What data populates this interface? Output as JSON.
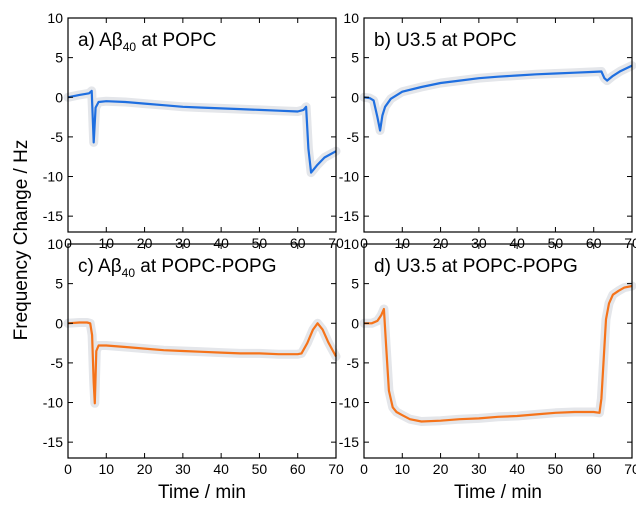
{
  "figure": {
    "ylabel": "Frequency Change / Hz",
    "xlabel": "Time / min"
  },
  "chart_data": [
    {
      "type": "line",
      "title": "a) Aβ",
      "title_sub": "40",
      "title_rest": " at POPC",
      "xlim": [
        0,
        70
      ],
      "ylim": [
        -17,
        10
      ],
      "xticks": [
        0,
        10,
        20,
        30,
        40,
        50,
        60,
        70
      ],
      "yticks": [
        10,
        5,
        0,
        -5,
        -10,
        -15
      ],
      "color": "#1f6fe0",
      "series": [
        {
          "x": [
            0,
            3,
            5.5,
            6.2,
            6.7,
            7.2,
            8,
            10,
            15,
            20,
            25,
            30,
            35,
            40,
            45,
            50,
            55,
            60,
            61.5,
            62.2,
            62.8,
            63.5,
            65,
            67,
            70
          ],
          "y": [
            0,
            0.3,
            0.5,
            0.8,
            -5.7,
            -1.3,
            -0.6,
            -0.5,
            -0.6,
            -0.8,
            -1.0,
            -1.2,
            -1.3,
            -1.4,
            -1.5,
            -1.6,
            -1.7,
            -1.8,
            -1.6,
            -1.2,
            -6.5,
            -9.5,
            -8.6,
            -7.6,
            -6.8
          ]
        }
      ]
    },
    {
      "type": "line",
      "title": "b) U3.5 at POPC",
      "xlim": [
        0,
        70
      ],
      "ylim": [
        -17,
        10
      ],
      "xticks": [
        0,
        10,
        20,
        30,
        40,
        50,
        60,
        70
      ],
      "yticks": [
        10,
        5,
        0,
        -5,
        -10,
        -15
      ],
      "color": "#1f6fe0",
      "series": [
        {
          "x": [
            0,
            1.5,
            2.5,
            3.5,
            4.2,
            4.8,
            5.5,
            7,
            10,
            15,
            20,
            25,
            30,
            35,
            40,
            45,
            50,
            55,
            60,
            62,
            62.8,
            63.5,
            65,
            67,
            70
          ],
          "y": [
            0,
            -0.1,
            -0.4,
            -2.5,
            -4.2,
            -2.3,
            -1.2,
            -0.2,
            0.7,
            1.3,
            1.8,
            2.1,
            2.4,
            2.6,
            2.75,
            2.9,
            3.0,
            3.1,
            3.2,
            3.25,
            2.4,
            2.1,
            2.7,
            3.3,
            4.0
          ]
        }
      ]
    },
    {
      "type": "line",
      "title": "c) Aβ",
      "title_sub": "40",
      "title_rest": " at POPC-POPG",
      "xlim": [
        0,
        70
      ],
      "ylim": [
        -17,
        10
      ],
      "xticks": [
        0,
        10,
        20,
        30,
        40,
        50,
        60,
        70
      ],
      "yticks": [
        10,
        5,
        0,
        -5,
        -10,
        -15
      ],
      "color": "#f5731a",
      "series": [
        {
          "x": [
            0,
            3,
            5,
            5.8,
            6.3,
            6.7,
            7,
            7.4,
            8,
            10,
            15,
            20,
            25,
            30,
            35,
            40,
            45,
            50,
            55,
            60,
            61,
            62.5,
            64,
            65.2,
            66.5,
            68,
            70
          ],
          "y": [
            0,
            0.1,
            0.1,
            0,
            -1.5,
            -7.5,
            -10.1,
            -3.5,
            -2.8,
            -2.8,
            -3.0,
            -3.2,
            -3.4,
            -3.5,
            -3.6,
            -3.7,
            -3.8,
            -3.8,
            -3.9,
            -3.9,
            -3.8,
            -2.5,
            -0.8,
            0,
            -0.8,
            -2.4,
            -4.2
          ]
        }
      ]
    },
    {
      "type": "line",
      "title": "d) U3.5 at POPC-POPG",
      "xlim": [
        0,
        70
      ],
      "ylim": [
        -17,
        10
      ],
      "xticks": [
        0,
        10,
        20,
        30,
        40,
        50,
        60,
        70
      ],
      "yticks": [
        10,
        5,
        0,
        -5,
        -10,
        -15
      ],
      "color": "#f5731a",
      "series": [
        {
          "x": [
            0,
            2,
            3.5,
            4.5,
            5.2,
            5.8,
            6.5,
            7.5,
            8.5,
            10,
            12,
            15,
            20,
            25,
            30,
            35,
            40,
            45,
            50,
            55,
            60,
            61.5,
            62,
            62.6,
            63.2,
            64,
            65,
            66.5,
            68,
            70
          ],
          "y": [
            0,
            0,
            0.3,
            1.0,
            1.8,
            -3.0,
            -8.5,
            -10.6,
            -11.2,
            -11.6,
            -12.1,
            -12.4,
            -12.3,
            -12.1,
            -12.0,
            -11.8,
            -11.7,
            -11.5,
            -11.3,
            -11.2,
            -11.2,
            -11.3,
            -9.5,
            -4.5,
            0.5,
            2.5,
            3.6,
            4.1,
            4.5,
            4.7
          ]
        }
      ]
    }
  ]
}
